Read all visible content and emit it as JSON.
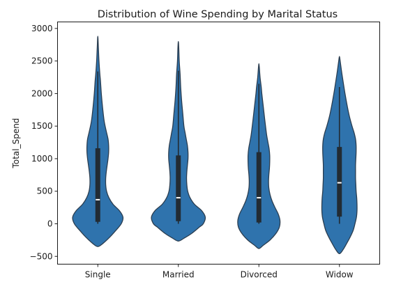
{
  "chart_data": {
    "type": "violin",
    "title": "Distribution of Wine Spending by Marital Status",
    "xlabel": "",
    "ylabel": "Total_Spend",
    "categories": [
      "Single",
      "Married",
      "Divorced",
      "Widow"
    ],
    "ylim": [
      -620,
      3100
    ],
    "yticks": [
      -500,
      0,
      500,
      1000,
      1500,
      2000,
      2500,
      3000
    ],
    "ytick_labels": [
      "−500",
      "0",
      "500",
      "1000",
      "1500",
      "2000",
      "2500",
      "3000"
    ],
    "grid": false,
    "legend": "none",
    "colors": {
      "violin_fill": "#2f73ad",
      "violin_edge": "#2b3d4f",
      "box": "#222b33",
      "median": "#ffffff",
      "axes": "#1a1a1a"
    },
    "violins": [
      {
        "name": "Single",
        "y_min": -350,
        "y_max": 2880,
        "profile": [
          [
            -350,
            0.0
          ],
          [
            -300,
            0.18
          ],
          [
            -200,
            0.42
          ],
          [
            -100,
            0.62
          ],
          [
            0,
            0.8
          ],
          [
            100,
            0.86
          ],
          [
            200,
            0.74
          ],
          [
            300,
            0.52
          ],
          [
            400,
            0.38
          ],
          [
            500,
            0.3
          ],
          [
            600,
            0.27
          ],
          [
            700,
            0.27
          ],
          [
            800,
            0.29
          ],
          [
            900,
            0.32
          ],
          [
            1000,
            0.35
          ],
          [
            1100,
            0.37
          ],
          [
            1200,
            0.37
          ],
          [
            1300,
            0.35
          ],
          [
            1400,
            0.3
          ],
          [
            1500,
            0.25
          ],
          [
            1600,
            0.21
          ],
          [
            1800,
            0.16
          ],
          [
            2000,
            0.12
          ],
          [
            2200,
            0.09
          ],
          [
            2300,
            0.07
          ],
          [
            2500,
            0.04
          ],
          [
            2700,
            0.02
          ],
          [
            2880,
            0.0
          ]
        ],
        "q1": 30,
        "median": 370,
        "q3": 1160,
        "whisker_low": 0,
        "whisker_high": 2340
      },
      {
        "name": "Married",
        "y_min": -265,
        "y_max": 2800,
        "profile": [
          [
            -265,
            0.0
          ],
          [
            -220,
            0.2
          ],
          [
            -150,
            0.45
          ],
          [
            -50,
            0.72
          ],
          [
            0,
            0.85
          ],
          [
            100,
            0.92
          ],
          [
            200,
            0.8
          ],
          [
            300,
            0.55
          ],
          [
            400,
            0.4
          ],
          [
            500,
            0.32
          ],
          [
            600,
            0.29
          ],
          [
            700,
            0.28
          ],
          [
            800,
            0.29
          ],
          [
            900,
            0.31
          ],
          [
            1000,
            0.33
          ],
          [
            1100,
            0.33
          ],
          [
            1200,
            0.31
          ],
          [
            1300,
            0.27
          ],
          [
            1400,
            0.23
          ],
          [
            1500,
            0.19
          ],
          [
            1700,
            0.15
          ],
          [
            1900,
            0.11
          ],
          [
            2100,
            0.08
          ],
          [
            2300,
            0.06
          ],
          [
            2500,
            0.03
          ],
          [
            2700,
            0.015
          ],
          [
            2800,
            0.0
          ]
        ],
        "q1": 40,
        "median": 400,
        "q3": 1050,
        "whisker_low": 0,
        "whisker_high": 2350
      },
      {
        "name": "Divorced",
        "y_min": -380,
        "y_max": 2460,
        "profile": [
          [
            -380,
            0.0
          ],
          [
            -330,
            0.15
          ],
          [
            -250,
            0.38
          ],
          [
            -150,
            0.58
          ],
          [
            -50,
            0.7
          ],
          [
            50,
            0.72
          ],
          [
            150,
            0.66
          ],
          [
            250,
            0.55
          ],
          [
            350,
            0.45
          ],
          [
            450,
            0.38
          ],
          [
            550,
            0.34
          ],
          [
            650,
            0.33
          ],
          [
            750,
            0.34
          ],
          [
            850,
            0.36
          ],
          [
            950,
            0.37
          ],
          [
            1050,
            0.37
          ],
          [
            1150,
            0.35
          ],
          [
            1250,
            0.31
          ],
          [
            1350,
            0.27
          ],
          [
            1450,
            0.24
          ],
          [
            1600,
            0.2
          ],
          [
            1800,
            0.15
          ],
          [
            2000,
            0.1
          ],
          [
            2100,
            0.08
          ],
          [
            2250,
            0.04
          ],
          [
            2400,
            0.015
          ],
          [
            2460,
            0.0
          ]
        ],
        "q1": 20,
        "median": 400,
        "q3": 1100,
        "whisker_low": 0,
        "whisker_high": 2150
      },
      {
        "name": "Widow",
        "y_min": -460,
        "y_max": 2570,
        "profile": [
          [
            -460,
            0.0
          ],
          [
            -400,
            0.12
          ],
          [
            -300,
            0.25
          ],
          [
            -200,
            0.37
          ],
          [
            -100,
            0.47
          ],
          [
            0,
            0.53
          ],
          [
            100,
            0.58
          ],
          [
            200,
            0.6
          ],
          [
            300,
            0.6
          ],
          [
            400,
            0.59
          ],
          [
            500,
            0.57
          ],
          [
            600,
            0.56
          ],
          [
            700,
            0.55
          ],
          [
            800,
            0.55
          ],
          [
            900,
            0.55
          ],
          [
            1000,
            0.56
          ],
          [
            1100,
            0.57
          ],
          [
            1200,
            0.57
          ],
          [
            1300,
            0.55
          ],
          [
            1400,
            0.5
          ],
          [
            1500,
            0.43
          ],
          [
            1650,
            0.34
          ],
          [
            1800,
            0.27
          ],
          [
            2000,
            0.19
          ],
          [
            2200,
            0.12
          ],
          [
            2350,
            0.07
          ],
          [
            2500,
            0.025
          ],
          [
            2570,
            0.0
          ]
        ],
        "q1": 110,
        "median": 630,
        "q3": 1180,
        "whisker_low": 0,
        "whisker_high": 2100
      }
    ]
  }
}
